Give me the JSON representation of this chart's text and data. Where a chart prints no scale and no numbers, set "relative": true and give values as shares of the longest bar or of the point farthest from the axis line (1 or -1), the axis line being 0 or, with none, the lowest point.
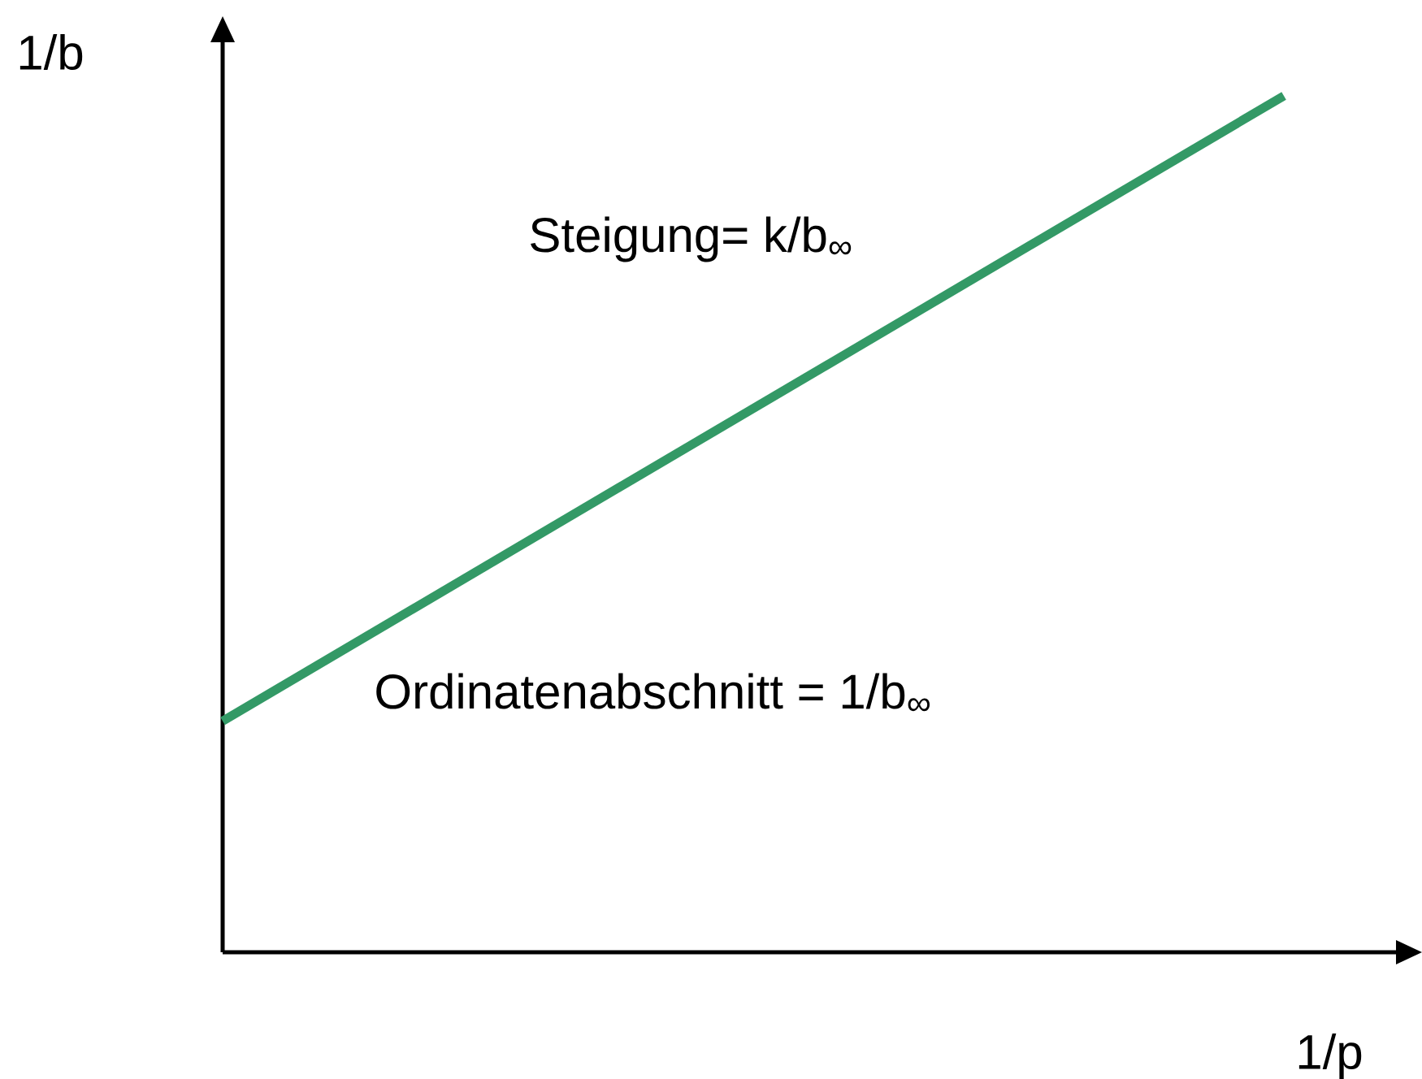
{
  "chart_data": {
    "type": "line",
    "relative": true,
    "categories": [
      null,
      null
    ],
    "values": [
      0.27,
      1
    ],
    "color": "#339966",
    "xlabel": "1/p",
    "ylabel": "1/b",
    "annotations": [
      "Steigung= k/b$_{∞}$",
      "Ordinatenabschnitt = 1/b$_{∞}$"
    ],
    "marker": "none",
    "tick_labels": false
  }
}
